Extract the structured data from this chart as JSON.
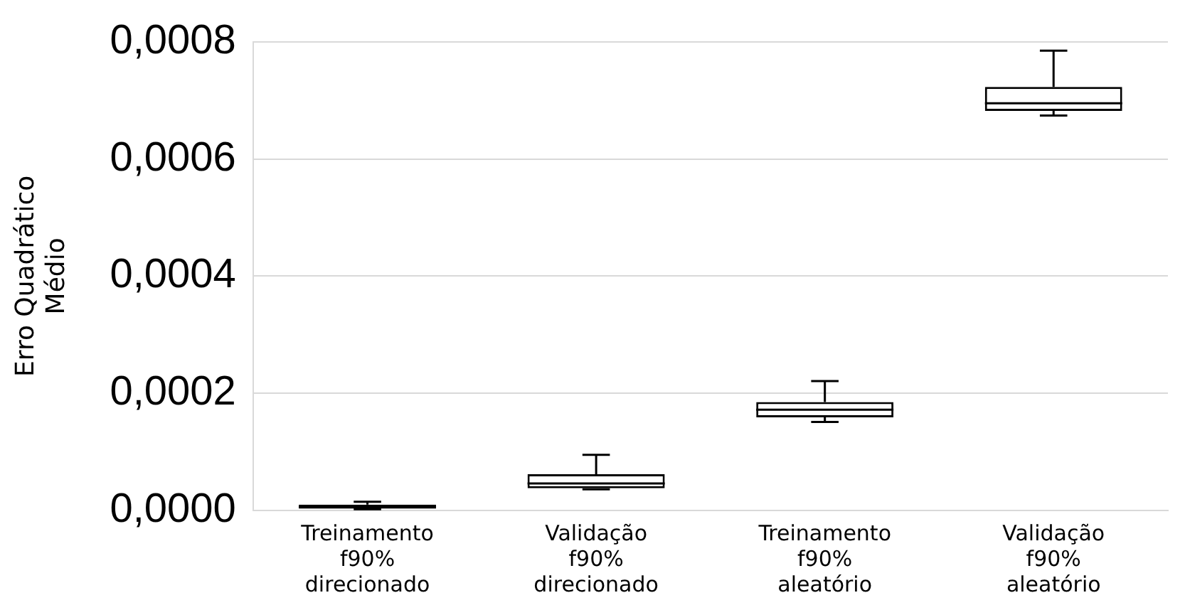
{
  "chart_data": {
    "type": "box",
    "ylabel": "Erro Quadrático Médio",
    "categories": [
      "Treinamento f90% direcionado",
      "Validação f90% direcionado",
      "Treinamento f90% aleatório",
      "Validação f90% aleatório"
    ],
    "boxes": [
      {
        "low": 2e-06,
        "q1": 3e-06,
        "median": 6e-06,
        "q3": 1e-05,
        "high": 1.5e-05
      },
      {
        "low": 3.6e-05,
        "q1": 3.8e-05,
        "median": 4.6e-05,
        "q3": 6.2e-05,
        "high": 9.5e-05
      },
      {
        "low": 0.000151,
        "q1": 0.000159,
        "median": 0.000172,
        "q3": 0.000185,
        "high": 0.000221
      },
      {
        "low": 0.000674,
        "q1": 0.000682,
        "median": 0.000695,
        "q3": 0.000723,
        "high": 0.000785
      }
    ],
    "ylim": [
      0,
      0.0008
    ],
    "yticks": [
      {
        "value": 0,
        "label": "0,0000"
      },
      {
        "value": 0.0002,
        "label": "0,0002"
      },
      {
        "value": 0.0004,
        "label": "0,0004"
      },
      {
        "value": 0.0006,
        "label": "0,0006"
      },
      {
        "value": 0.0008,
        "label": "0,0008"
      }
    ],
    "grid": "y",
    "legend": false
  }
}
